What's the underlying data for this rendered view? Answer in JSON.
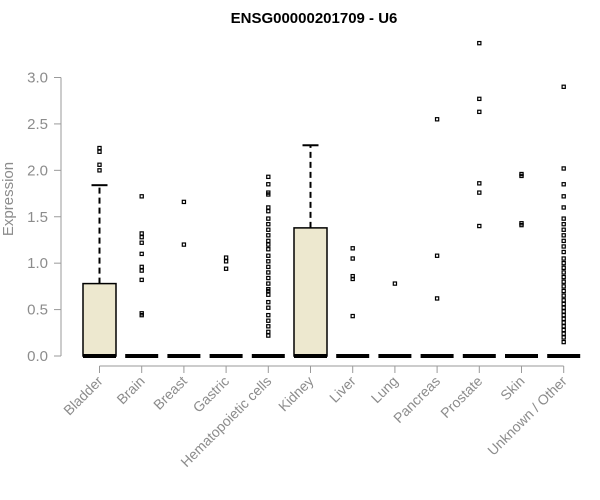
{
  "chart_data": {
    "type": "boxplot",
    "title": "ENSG00000201709 - U6",
    "xlabel": "",
    "ylabel": "Expression",
    "ylim": [
      0,
      3.4
    ],
    "yticks": [
      0.0,
      0.5,
      1.0,
      1.5,
      2.0,
      2.5,
      3.0
    ],
    "ytick_labels": [
      "0.0",
      "0.5",
      "1.0",
      "1.5",
      "2.0",
      "2.5",
      "3.0"
    ],
    "colors": {
      "box_fill": "#ede8cf",
      "box_stroke": "#000000",
      "axis": "#9a9a9a",
      "text": "#8c8c8c"
    },
    "categories": [
      "Bladder",
      "Brain",
      "Breast",
      "Gastric",
      "Hematopoietic cells",
      "Kidney",
      "Liver",
      "Lung",
      "Pancreas",
      "Prostate",
      "Skin",
      "Unknown / Other"
    ],
    "boxes": [
      {
        "name": "Bladder",
        "q1": 0,
        "median": 0,
        "q3": 0.78,
        "whisker_low": 0,
        "whisker_high": 1.84,
        "outliers": [
          2.24,
          2.2,
          2.06,
          2.0
        ]
      },
      {
        "name": "Brain",
        "q1": 0,
        "median": 0,
        "q3": 0,
        "whisker_low": 0,
        "whisker_high": 0,
        "outliers": [
          1.72,
          1.32,
          1.28,
          1.22,
          1.1,
          0.96,
          0.92,
          0.82,
          0.46,
          0.44
        ]
      },
      {
        "name": "Breast",
        "q1": 0,
        "median": 0,
        "q3": 0,
        "whisker_low": 0,
        "whisker_high": 0,
        "outliers": [
          1.66,
          1.2
        ]
      },
      {
        "name": "Gastric",
        "q1": 0,
        "median": 0,
        "q3": 0,
        "whisker_low": 0,
        "whisker_high": 0,
        "outliers": [
          1.06,
          1.02,
          0.94
        ]
      },
      {
        "name": "Hematopoietic cells",
        "q1": 0,
        "median": 0,
        "q3": 0,
        "whisker_low": 0,
        "whisker_high": 0,
        "outliers": [
          1.93,
          1.85,
          1.76,
          1.74,
          1.6,
          1.56,
          1.48,
          1.42,
          1.36,
          1.3,
          1.24,
          1.2,
          1.15,
          1.08,
          1.02,
          0.96,
          0.9,
          0.84,
          0.78,
          0.72,
          0.7,
          0.66,
          0.58,
          0.52,
          0.44,
          0.38,
          0.32,
          0.26,
          0.22
        ]
      },
      {
        "name": "Kidney",
        "q1": 0,
        "median": 0,
        "q3": 1.38,
        "whisker_low": 0,
        "whisker_high": 2.27,
        "outliers": []
      },
      {
        "name": "Liver",
        "q1": 0,
        "median": 0,
        "q3": 0,
        "whisker_low": 0,
        "whisker_high": 0,
        "outliers": [
          1.16,
          1.05,
          0.86,
          0.83,
          0.43
        ]
      },
      {
        "name": "Lung",
        "q1": 0,
        "median": 0,
        "q3": 0,
        "whisker_low": 0,
        "whisker_high": 0,
        "outliers": [
          0.78
        ]
      },
      {
        "name": "Pancreas",
        "q1": 0,
        "median": 0,
        "q3": 0,
        "whisker_low": 0,
        "whisker_high": 0,
        "outliers": [
          2.55,
          1.08,
          0.62
        ]
      },
      {
        "name": "Prostate",
        "q1": 0,
        "median": 0,
        "q3": 0,
        "whisker_low": 0,
        "whisker_high": 0,
        "outliers": [
          3.37,
          2.77,
          2.63,
          1.86,
          1.76,
          1.4
        ]
      },
      {
        "name": "Skin",
        "q1": 0,
        "median": 0,
        "q3": 0,
        "whisker_low": 0,
        "whisker_high": 0,
        "outliers": [
          1.96,
          1.94,
          1.43,
          1.41
        ]
      },
      {
        "name": "Unknown / Other",
        "q1": 0,
        "median": 0,
        "q3": 0,
        "whisker_low": 0,
        "whisker_high": 0,
        "outliers": [
          2.9,
          2.02,
          1.85,
          1.72,
          1.6,
          1.48,
          1.42,
          1.36,
          1.3,
          1.24,
          1.18,
          1.12,
          1.05,
          1.0,
          0.95,
          0.9,
          0.85,
          0.8,
          0.75,
          0.7,
          0.65,
          0.6,
          0.56,
          0.52,
          0.48,
          0.44,
          0.4,
          0.36,
          0.32,
          0.28,
          0.24,
          0.2,
          0.15
        ]
      }
    ]
  }
}
